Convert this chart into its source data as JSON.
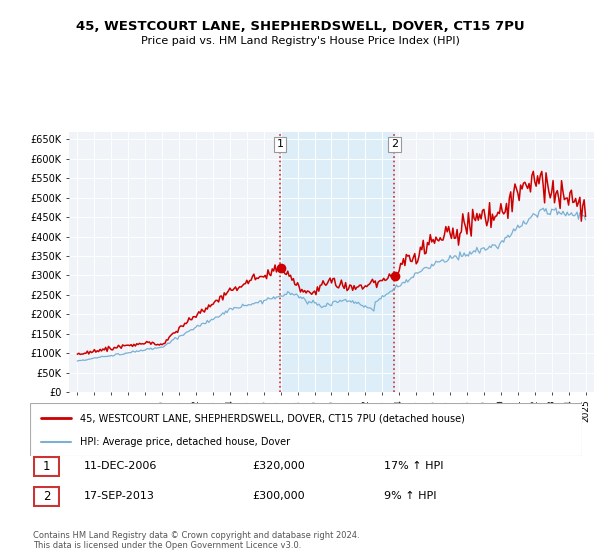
{
  "title": "45, WESTCOURT LANE, SHEPHERDSWELL, DOVER, CT15 7PU",
  "subtitle": "Price paid vs. HM Land Registry's House Price Index (HPI)",
  "legend_property": "45, WESTCOURT LANE, SHEPHERDSWELL, DOVER, CT15 7PU (detached house)",
  "legend_hpi": "HPI: Average price, detached house, Dover",
  "transaction1_date": "11-DEC-2006",
  "transaction1_price": "£320,000",
  "transaction1_hpi": "17% ↑ HPI",
  "transaction1_year": 2006.96,
  "transaction2_date": "17-SEP-2013",
  "transaction2_price": "£300,000",
  "transaction2_hpi": "9% ↑ HPI",
  "transaction2_year": 2013.71,
  "footer": "Contains HM Land Registry data © Crown copyright and database right 2024.\nThis data is licensed under the Open Government Licence v3.0.",
  "yticks": [
    0,
    50000,
    100000,
    150000,
    200000,
    250000,
    300000,
    350000,
    400000,
    450000,
    500000,
    550000,
    600000,
    650000
  ],
  "red_color": "#cc0000",
  "blue_color": "#7ab0d4",
  "shade_color": "#ddeef8",
  "background_color": "#ffffff",
  "plot_bg_color": "#f0f4f8"
}
